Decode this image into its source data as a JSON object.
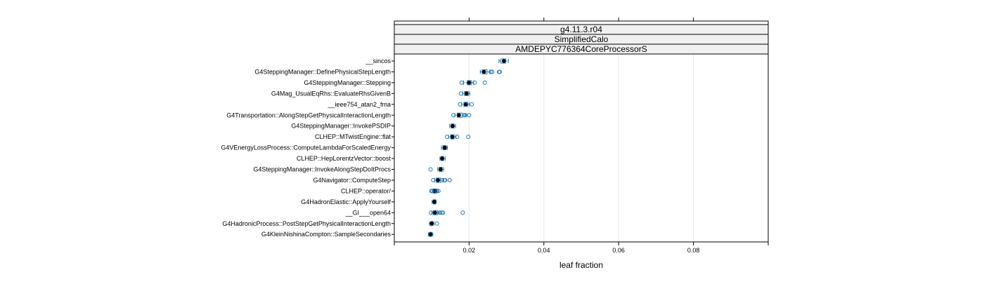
{
  "chart_data": {
    "type": "boxplot",
    "strips": [
      "g4.11.3.r04",
      "SimplifiedCalo",
      "AMDEPYC776364CoreProcessorS"
    ],
    "xlabel": "leaf fraction",
    "xlim": [
      0.0,
      0.1
    ],
    "xticks": [
      0.02,
      0.04,
      0.06,
      0.08
    ],
    "xtick_labels": [
      "0.02",
      "0.04",
      "0.06",
      "0.08"
    ],
    "grid": true,
    "colors": {
      "box": "#1f77b4",
      "median": "#000000",
      "outlier": "#1f77b4",
      "grid": "#e6e6e6",
      "strip_bg": "#f0f0f0"
    },
    "categories": [
      {
        "label": "__sincos",
        "q1": 0.0285,
        "median": 0.0293,
        "q3": 0.0298,
        "whisker_low": 0.028,
        "whisker_high": 0.0305,
        "outliers": []
      },
      {
        "label": "G4SteppingManager::DefinePhysicalStepLength",
        "q1": 0.0235,
        "median": 0.024,
        "q3": 0.0248,
        "whisker_low": 0.023,
        "whisker_high": 0.0255,
        "outliers": [
          0.0258,
          0.0262,
          0.028,
          0.0282
        ]
      },
      {
        "label": "G4SteppingManager::Stepping",
        "q1": 0.0195,
        "median": 0.02,
        "q3": 0.0206,
        "whisker_low": 0.0185,
        "whisker_high": 0.0212,
        "outliers": [
          0.018,
          0.0215,
          0.0242
        ]
      },
      {
        "label": "G4Mag_UsualEqRhs::EvaluateRhsGivenB",
        "q1": 0.0188,
        "median": 0.0193,
        "q3": 0.0198,
        "whisker_low": 0.0183,
        "whisker_high": 0.0202,
        "outliers": [
          0.0178
        ]
      },
      {
        "label": "__ieee754_atan2_fma",
        "q1": 0.0186,
        "median": 0.0191,
        "q3": 0.0196,
        "whisker_low": 0.018,
        "whisker_high": 0.02,
        "outliers": [
          0.0176,
          0.0207
        ]
      },
      {
        "label": "G4Transportation::AlongStepGetPhysicalInteractionLength",
        "q1": 0.0168,
        "median": 0.0173,
        "q3": 0.0182,
        "whisker_low": 0.0162,
        "whisker_high": 0.0192,
        "outliers": [
          0.0158,
          0.0186,
          0.019,
          0.02
        ]
      },
      {
        "label": "G4SteppingManager::InvokePSDIP",
        "q1": 0.0152,
        "median": 0.0156,
        "q3": 0.016,
        "whisker_low": 0.0148,
        "whisker_high": 0.0164,
        "outliers": []
      },
      {
        "label": "CLHEP::MTwistEngine::flat",
        "q1": 0.0151,
        "median": 0.0155,
        "q3": 0.016,
        "whisker_low": 0.0145,
        "whisker_high": 0.0165,
        "outliers": [
          0.0141,
          0.0168,
          0.0198
        ]
      },
      {
        "label": "G4VEnergyLossProcess::ComputeLambdaForScaledEnergy",
        "q1": 0.013,
        "median": 0.0135,
        "q3": 0.0139,
        "whisker_low": 0.0126,
        "whisker_high": 0.0142,
        "outliers": []
      },
      {
        "label": "CLHEP::HepLorentzVector::boost",
        "q1": 0.0125,
        "median": 0.0128,
        "q3": 0.0132,
        "whisker_low": 0.0122,
        "whisker_high": 0.0136,
        "outliers": []
      },
      {
        "label": "G4SteppingManager::InvokeAlongStepDoItProcs",
        "q1": 0.012,
        "median": 0.0124,
        "q3": 0.0128,
        "whisker_low": 0.0116,
        "whisker_high": 0.0132,
        "outliers": [
          0.0097
        ]
      },
      {
        "label": "G4Navigator::ComputeStep",
        "q1": 0.0112,
        "median": 0.0117,
        "q3": 0.0124,
        "whisker_low": 0.0108,
        "whisker_high": 0.013,
        "outliers": [
          0.0104,
          0.0128,
          0.0134,
          0.0136,
          0.0148
        ]
      },
      {
        "label": "CLHEP::operator/",
        "q1": 0.0104,
        "median": 0.0108,
        "q3": 0.0113,
        "whisker_low": 0.0101,
        "whisker_high": 0.0117,
        "outliers": [
          0.0099,
          0.0101,
          0.0114,
          0.0118
        ]
      },
      {
        "label": "G4HadronElastic::ApplyYourself",
        "q1": 0.0104,
        "median": 0.0107,
        "q3": 0.011,
        "whisker_low": 0.0101,
        "whisker_high": 0.0112,
        "outliers": []
      },
      {
        "label": "__GI___open64",
        "q1": 0.0104,
        "median": 0.0109,
        "q3": 0.0116,
        "whisker_low": 0.01,
        "whisker_high": 0.012,
        "outliers": [
          0.0098,
          0.0122,
          0.0127,
          0.013,
          0.0183
        ]
      },
      {
        "label": "G4HadronicProcess::PostStepGetPhysicalInteractionLength",
        "q1": 0.0097,
        "median": 0.01,
        "q3": 0.0103,
        "whisker_low": 0.0094,
        "whisker_high": 0.0106,
        "outliers": [
          0.0114
        ]
      },
      {
        "label": "G4KleinNishinaCompton::SampleSecondaries",
        "q1": 0.0094,
        "median": 0.0097,
        "q3": 0.01,
        "whisker_low": 0.0091,
        "whisker_high": 0.0103,
        "outliers": []
      }
    ]
  }
}
